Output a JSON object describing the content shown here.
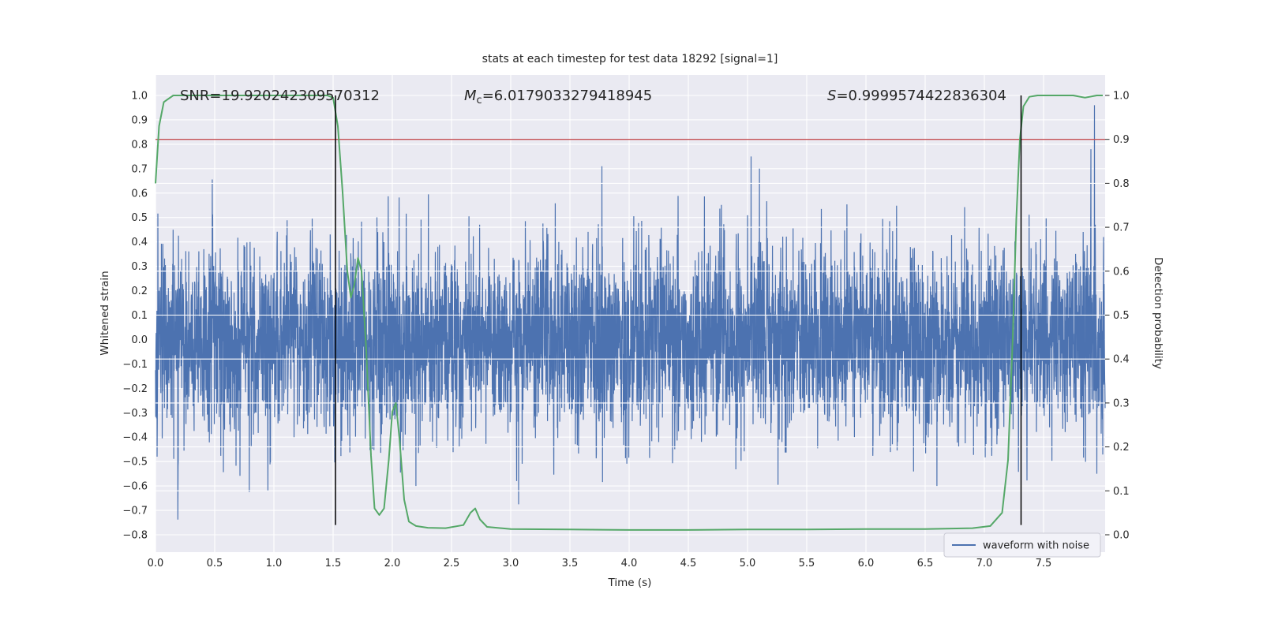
{
  "annotations": [
    {
      "name": "snr",
      "base": "SNR",
      "rest": "=19.920242309570312"
    },
    {
      "name": "chirp_mass",
      "base": "M",
      "sub": "c",
      "rest": "=6.0179033279418945"
    },
    {
      "name": "s_stat",
      "base": "S",
      "rest": "=0.9999574422836304"
    }
  ],
  "legend": {
    "items": [
      {
        "label": "waveform with noise",
        "color": "#4C72B0"
      }
    ]
  },
  "colors": {
    "plot_background": "#EAEAF2",
    "grid": "#FFFFFF",
    "waveform": "#4C72B0",
    "probability_curve": "#55A868",
    "threshold_line": "#C44E52",
    "event_marker": "#000000",
    "text": "#262626"
  },
  "chart_data": {
    "type": "line",
    "title": "stats at each timestep for test data 18292 [signal=1]",
    "xlabel": "Time (s)",
    "ylabel_left": "Whitened strain",
    "ylabel_right": "Detection probability",
    "x_range": [
      0,
      8.02
    ],
    "y_left_range": [
      -0.872,
      1.084
    ],
    "y_right_range": [
      0,
      1
    ],
    "grid": true,
    "legend_position": "lower right",
    "x_ticks": {
      "values": [
        0,
        0.5,
        1,
        1.5,
        2,
        2.5,
        3,
        3.5,
        4,
        4.5,
        5,
        5.5,
        6,
        6.5,
        7,
        7.5
      ],
      "labels": [
        "0.0",
        "0.5",
        "1.0",
        "1.5",
        "2.0",
        "2.5",
        "3.0",
        "3.5",
        "4.0",
        "4.5",
        "5.0",
        "5.5",
        "6.0",
        "6.5",
        "7.0",
        "7.5"
      ]
    },
    "y_left_ticks": {
      "values": [
        1.0,
        0.9,
        0.8,
        0.7,
        0.6,
        0.5,
        0.4,
        0.3,
        0.2,
        0.1,
        0.0,
        -0.1,
        -0.2,
        -0.3,
        -0.4,
        -0.5,
        -0.6,
        -0.7,
        -0.8
      ],
      "labels": [
        "1.0",
        "0.9",
        "0.8",
        "0.7",
        "0.6",
        "0.5",
        "0.4",
        "0.3",
        "0.2",
        "0.1",
        "0.0",
        "−0.1",
        "−0.2",
        "−0.3",
        "−0.4",
        "−0.5",
        "−0.6",
        "−0.7",
        "−0.8"
      ]
    },
    "y_right_ticks": {
      "values": [
        1.0,
        0.9,
        0.8,
        0.7,
        0.6,
        0.5,
        0.4,
        0.3,
        0.2,
        0.1,
        0.0
      ],
      "labels": [
        "1.0",
        "0.9",
        "0.8",
        "0.7",
        "0.6",
        "0.5",
        "0.4",
        "0.3",
        "0.2",
        "0.1",
        "0.0"
      ]
    },
    "series": [
      {
        "name": "waveform with noise",
        "role": "noise",
        "axis": "left",
        "color": "#4C72B0",
        "seed": 18292,
        "n": 4800,
        "sigma": 0.19,
        "duration": 8.02,
        "extra_spikes": [
          [
            0.95,
            -0.62
          ],
          [
            2.2,
            -0.6
          ],
          [
            3.05,
            -0.58
          ],
          [
            3.77,
            0.71
          ],
          [
            5.03,
            0.75
          ],
          [
            5.1,
            0.7
          ],
          [
            6.6,
            -0.6
          ],
          [
            7.9,
            0.78
          ],
          [
            7.93,
            0.96
          ],
          [
            7.95,
            -0.55
          ]
        ]
      },
      {
        "name": "detection probability",
        "role": "line",
        "axis": "right",
        "color": "#55A868",
        "points": [
          [
            0.0,
            0.8
          ],
          [
            0.03,
            0.93
          ],
          [
            0.07,
            0.985
          ],
          [
            0.15,
            1.0
          ],
          [
            0.6,
            1.0
          ],
          [
            1.0,
            1.0
          ],
          [
            1.3,
            1.0
          ],
          [
            1.45,
            1.0
          ],
          [
            1.5,
            0.995
          ],
          [
            1.54,
            0.93
          ],
          [
            1.58,
            0.78
          ],
          [
            1.62,
            0.6
          ],
          [
            1.65,
            0.54
          ],
          [
            1.68,
            0.57
          ],
          [
            1.71,
            0.63
          ],
          [
            1.74,
            0.6
          ],
          [
            1.78,
            0.42
          ],
          [
            1.82,
            0.18
          ],
          [
            1.85,
            0.06
          ],
          [
            1.89,
            0.045
          ],
          [
            1.93,
            0.06
          ],
          [
            1.97,
            0.17
          ],
          [
            2.0,
            0.28
          ],
          [
            2.03,
            0.3
          ],
          [
            2.06,
            0.22
          ],
          [
            2.1,
            0.08
          ],
          [
            2.14,
            0.03
          ],
          [
            2.2,
            0.02
          ],
          [
            2.3,
            0.016
          ],
          [
            2.45,
            0.015
          ],
          [
            2.6,
            0.022
          ],
          [
            2.66,
            0.05
          ],
          [
            2.7,
            0.06
          ],
          [
            2.74,
            0.035
          ],
          [
            2.8,
            0.018
          ],
          [
            3.0,
            0.013
          ],
          [
            3.5,
            0.012
          ],
          [
            4.0,
            0.011
          ],
          [
            4.5,
            0.011
          ],
          [
            5.0,
            0.012
          ],
          [
            5.5,
            0.012
          ],
          [
            6.0,
            0.013
          ],
          [
            6.5,
            0.013
          ],
          [
            6.9,
            0.015
          ],
          [
            7.05,
            0.02
          ],
          [
            7.15,
            0.05
          ],
          [
            7.2,
            0.17
          ],
          [
            7.24,
            0.45
          ],
          [
            7.27,
            0.72
          ],
          [
            7.3,
            0.9
          ],
          [
            7.33,
            0.975
          ],
          [
            7.38,
            0.997
          ],
          [
            7.45,
            1.0
          ],
          [
            7.6,
            1.0
          ],
          [
            7.75,
            1.0
          ],
          [
            7.85,
            0.995
          ],
          [
            7.95,
            1.0
          ],
          [
            8.0,
            1.0
          ]
        ]
      },
      {
        "name": "detection threshold",
        "role": "hline",
        "axis": "right",
        "color": "#C44E52",
        "value": 0.9
      },
      {
        "name": "signal window markers",
        "role": "vlines",
        "axis": "left",
        "color": "#000000",
        "values": [
          1.52,
          7.31
        ],
        "y_from": -0.76,
        "y_to": 1.0
      }
    ]
  }
}
